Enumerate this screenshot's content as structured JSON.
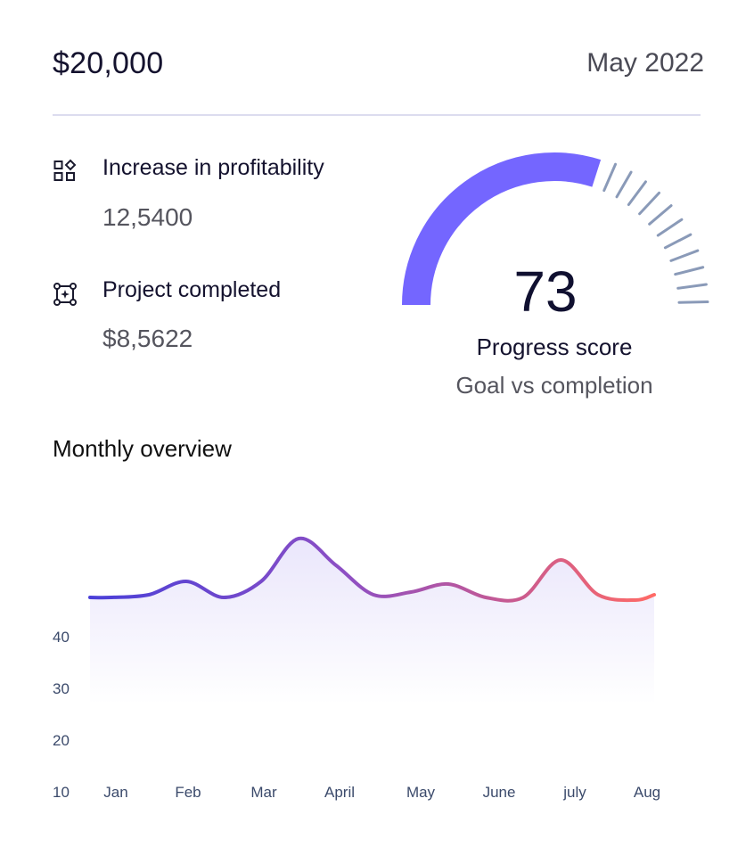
{
  "header": {
    "amount": "$20,000",
    "date": "May 2022"
  },
  "stats": [
    {
      "icon": "grid-shapes-icon",
      "label": "Increase in profitability",
      "value": "12,5400"
    },
    {
      "icon": "frame-sparkle-icon",
      "label": "Project completed",
      "value": "$8,5622"
    }
  ],
  "progress": {
    "score": "73",
    "label": "Progress score",
    "sub": "Goal vs completion",
    "value_percent": 73,
    "colors": {
      "filled": "#7466ff",
      "ticks": "#8a9ab8"
    }
  },
  "overview": {
    "title": "Monthly overview"
  },
  "chart_data": {
    "type": "area",
    "title": "Monthly overview",
    "xlabel": "",
    "ylabel": "",
    "y_ticks": [
      "40",
      "30",
      "20",
      "10"
    ],
    "categories": [
      "Jan",
      "Feb",
      "Mar",
      "April",
      "May",
      "June",
      "july",
      "Aug"
    ],
    "ylim": [
      10,
      90
    ],
    "x": [
      0,
      0.5,
      1,
      1.5,
      2,
      2.5,
      3,
      3.5,
      4,
      4.5,
      5,
      5.5,
      6,
      6.5,
      7,
      7.25
    ],
    "values": [
      50,
      51,
      56,
      50,
      56,
      72,
      62,
      51,
      52,
      55,
      50,
      50,
      64,
      51,
      49,
      51
    ],
    "grid": false,
    "colors": {
      "gradient_start": "#4f3fd8",
      "gradient_mid": "#8a4bc0",
      "gradient_end": "#fb6b6b",
      "fill": "#ece9fb"
    }
  }
}
